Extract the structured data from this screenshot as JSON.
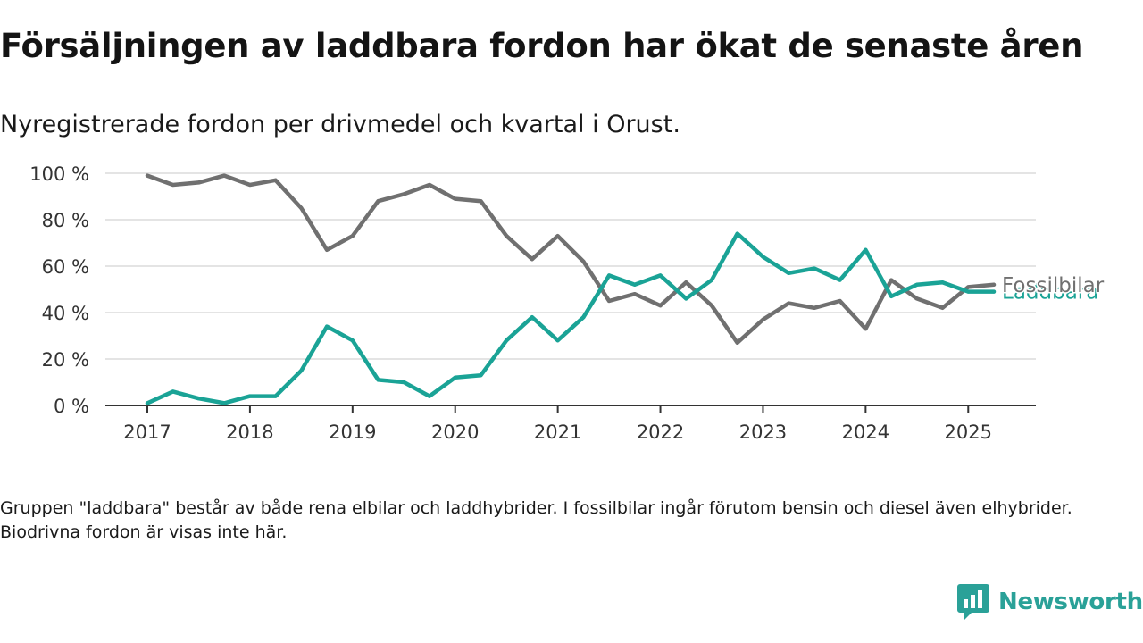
{
  "header": {
    "title": "Försäljningen av laddbara fordon har ökat de senaste åren",
    "subtitle": "Nyregistrerade fordon per drivmedel och kvartal i Orust."
  },
  "footnote": "Gruppen \"laddbara\" består av både rena elbilar och laddhybrider. I fossilbilar ingår förutom bensin och diesel även elhybrider. Biodrivna fordon är visas inte här.",
  "brand": {
    "name": "Newsworthy",
    "color": "#2aa198",
    "icon": "bar-chart-bubble-icon"
  },
  "chart_data": {
    "type": "line",
    "x": [
      2017.0,
      2017.25,
      2017.5,
      2017.75,
      2018.0,
      2018.25,
      2018.5,
      2018.75,
      2019.0,
      2019.25,
      2019.5,
      2019.75,
      2020.0,
      2020.25,
      2020.5,
      2020.75,
      2021.0,
      2021.25,
      2021.5,
      2021.75,
      2022.0,
      2022.25,
      2022.5,
      2022.75,
      2023.0,
      2023.25,
      2023.5,
      2023.75,
      2024.0,
      2024.25,
      2024.5,
      2024.75,
      2025.0,
      2025.25
    ],
    "series": [
      {
        "name": "Fossilbilar",
        "color": "#707070",
        "values": [
          99,
          95,
          96,
          99,
          95,
          97,
          85,
          67,
          73,
          88,
          91,
          95,
          89,
          88,
          73,
          63,
          73,
          62,
          45,
          48,
          43,
          53,
          43,
          27,
          37,
          44,
          42,
          45,
          33,
          54,
          46,
          42,
          51,
          52
        ]
      },
      {
        "name": "Laddbara",
        "color": "#1aa396",
        "values": [
          1,
          6,
          3,
          1,
          4,
          4,
          15,
          34,
          28,
          11,
          10,
          4,
          12,
          13,
          28,
          38,
          28,
          38,
          56,
          52,
          56,
          46,
          54,
          74,
          64,
          57,
          59,
          54,
          67,
          47,
          52,
          53,
          49,
          49
        ]
      }
    ],
    "x_ticks": [
      {
        "value": 2017,
        "label": "2017"
      },
      {
        "value": 2018,
        "label": "2018"
      },
      {
        "value": 2019,
        "label": "2019"
      },
      {
        "value": 2020,
        "label": "2020"
      },
      {
        "value": 2021,
        "label": "2021"
      },
      {
        "value": 2022,
        "label": "2022"
      },
      {
        "value": 2023,
        "label": "2023"
      },
      {
        "value": 2024,
        "label": "2024"
      },
      {
        "value": 2025,
        "label": "2025"
      }
    ],
    "y_ticks": [
      {
        "value": 0,
        "label": "0 %"
      },
      {
        "value": 20,
        "label": "20 %"
      },
      {
        "value": 40,
        "label": "40 %"
      },
      {
        "value": 60,
        "label": "60 %"
      },
      {
        "value": 80,
        "label": "80 %"
      },
      {
        "value": 100,
        "label": "100 %"
      }
    ],
    "ylim": [
      0,
      100
    ],
    "grid": true,
    "legend": "line-end labels"
  }
}
